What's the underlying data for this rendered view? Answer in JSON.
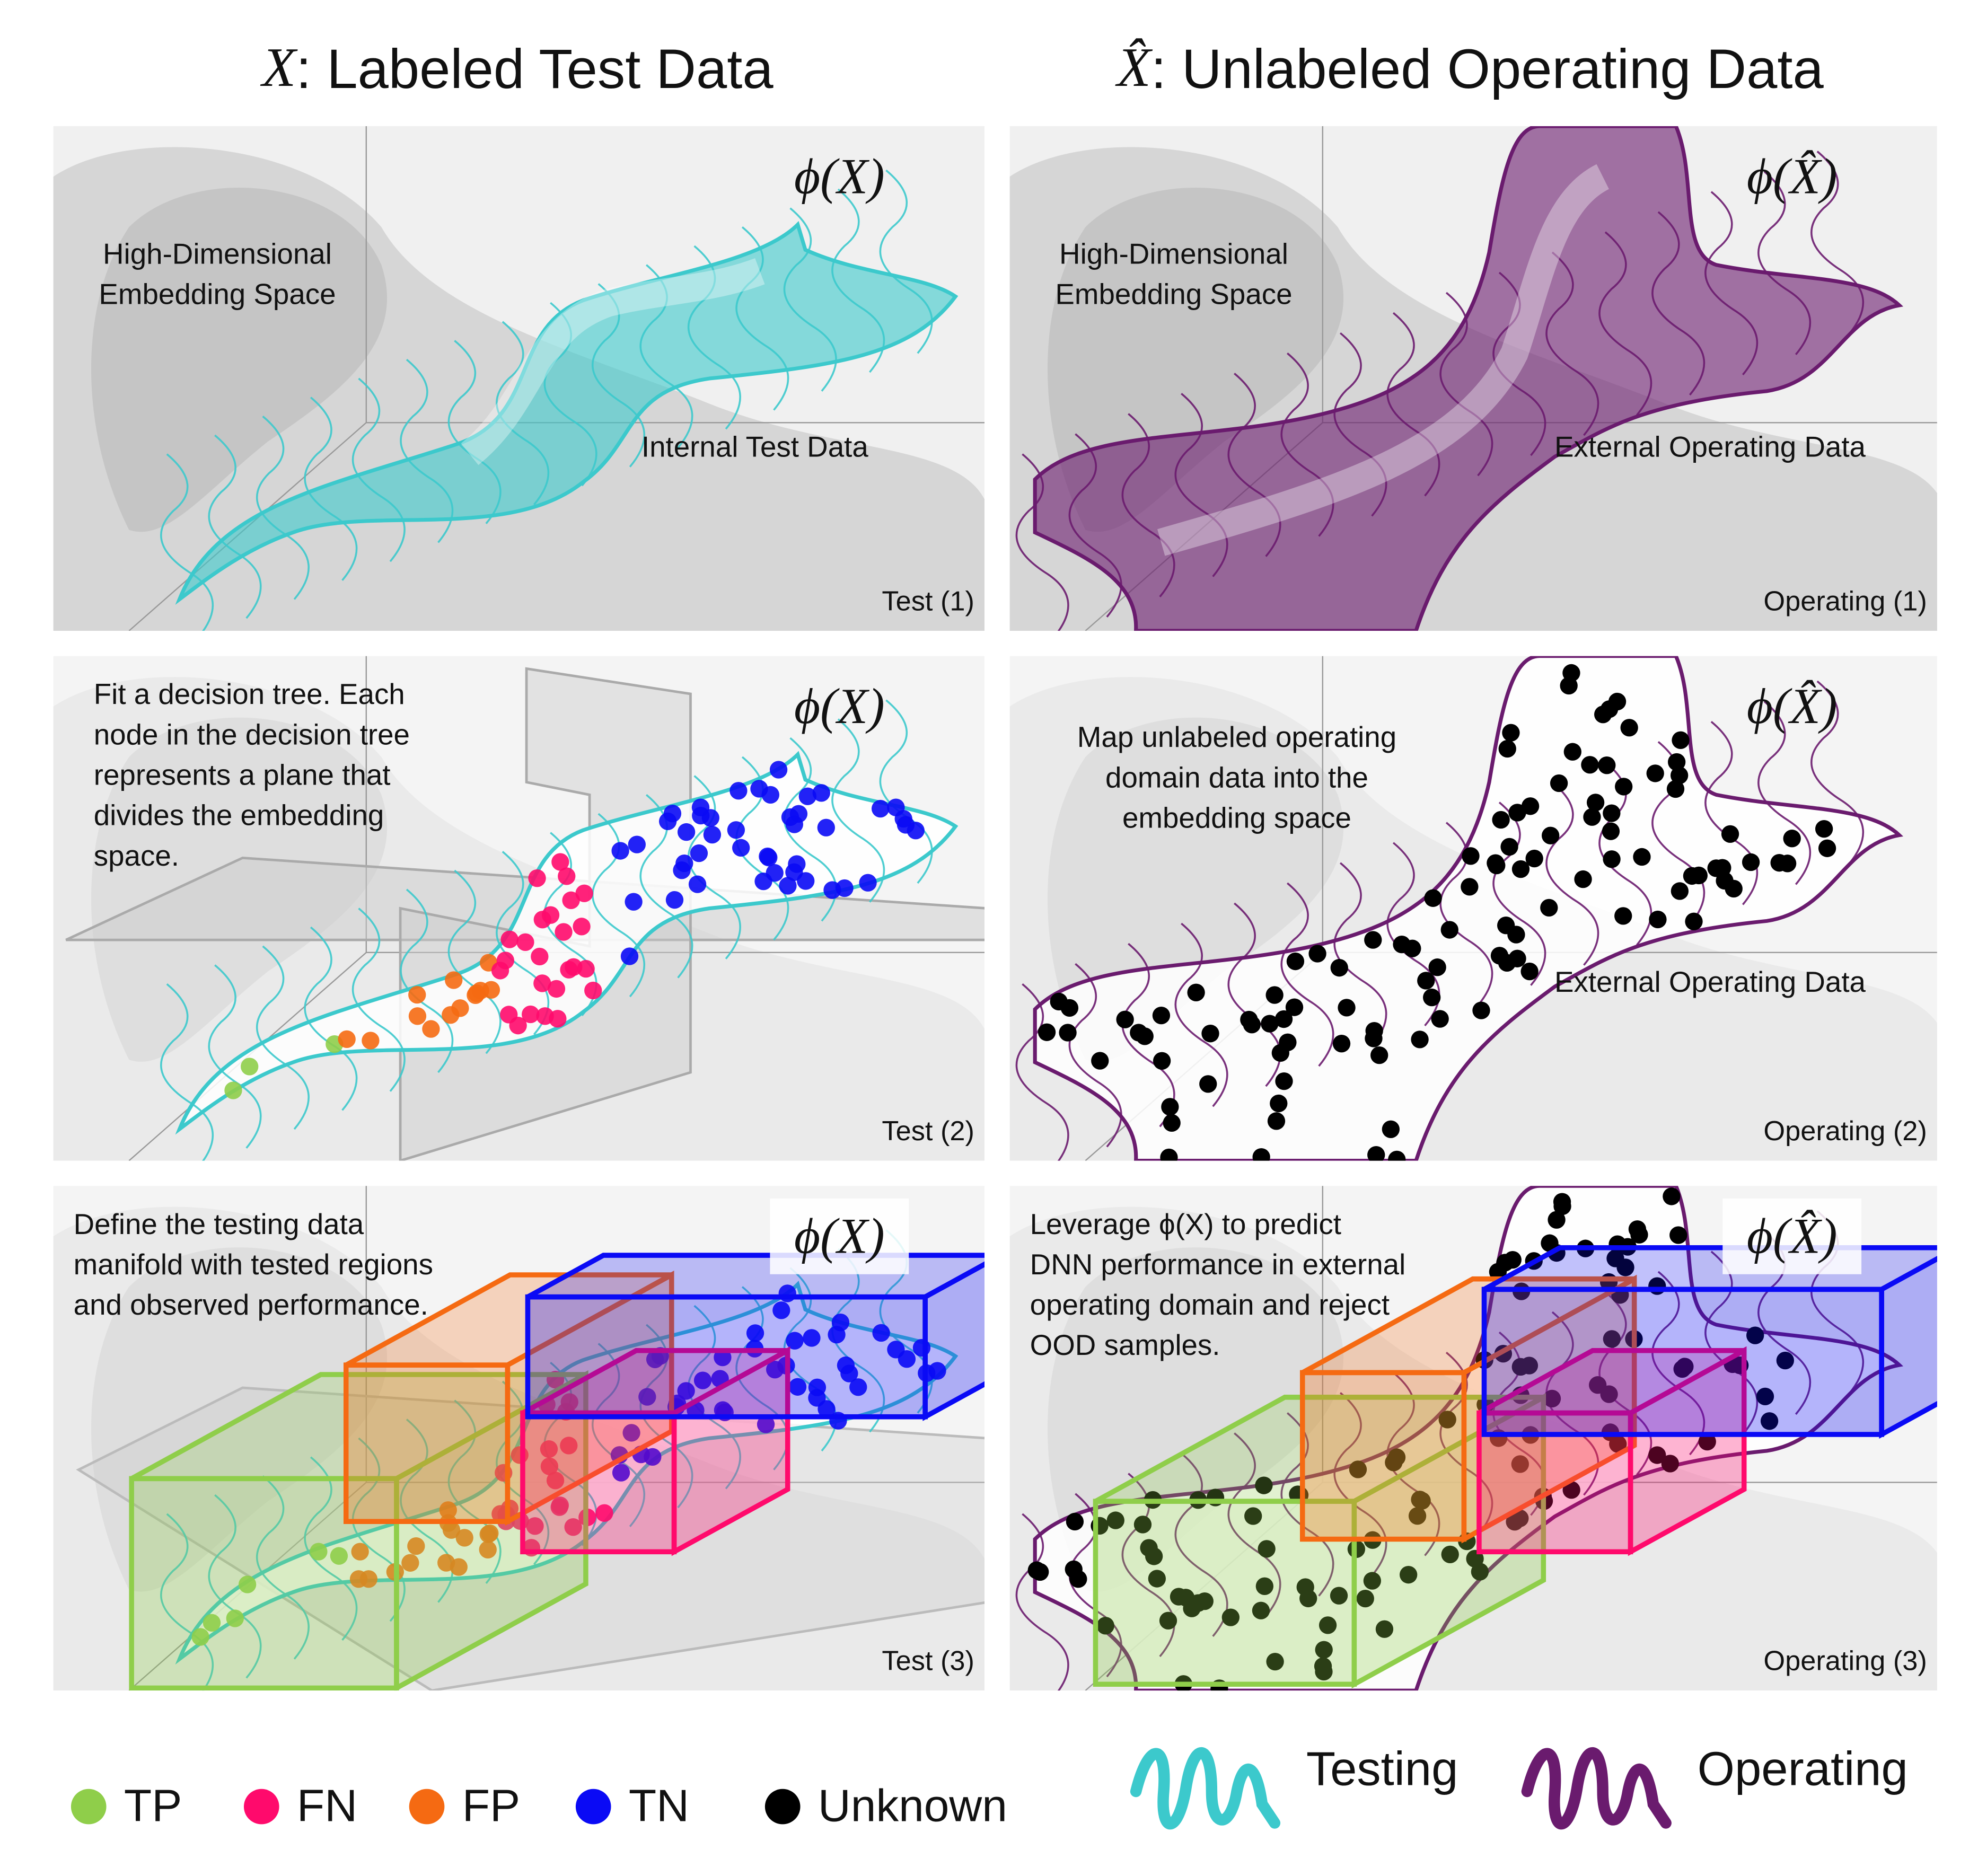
{
  "titles": [
    {
      "symbol": "X",
      "text": ": Labeled Test Data"
    },
    {
      "symbol": "X̂",
      "text": ": Unlabeled Operating Data"
    }
  ],
  "panels": [
    {
      "tag": "Test (1)",
      "phi": "ϕ(X)",
      "note": [
        "High-Dimensional",
        "Embedding Space"
      ],
      "region": "Internal Test Data"
    },
    {
      "tag": "Operating (1)",
      "phi": "ϕ(X̂)",
      "note": [
        "High-Dimensional",
        "Embedding Space"
      ],
      "region": "External Operating Data"
    },
    {
      "tag": "Test (2)",
      "phi": "ϕ(X)",
      "note": [
        "Fit a decision tree. Each",
        "node in the decision tree",
        "represents a plane that",
        "divides the embedding",
        "space."
      ]
    },
    {
      "tag": "Operating (2)",
      "phi": "ϕ(X̂)",
      "note": [
        "Map unlabeled operating",
        "domain data into the",
        "embedding space"
      ],
      "region": "External Operating Data"
    },
    {
      "tag": "Test (3)",
      "phi": "ϕ(X)",
      "note": [
        "Define the testing data",
        "manifold with tested regions",
        "and observed performance."
      ]
    },
    {
      "tag": "Operating (3)",
      "phi": "ϕ(X̂)",
      "note": [
        "Leverage ϕ(X) to predict",
        "DNN performance in external",
        "operating domain and reject",
        "OOD samples."
      ]
    }
  ],
  "legend": {
    "classes": [
      {
        "name": "TP",
        "color": "#8fce4a"
      },
      {
        "name": "FN",
        "color": "#ff0a6c"
      },
      {
        "name": "FP",
        "color": "#f56a12"
      },
      {
        "name": "TN",
        "color": "#0a0af5"
      },
      {
        "name": "Unknown",
        "color": "#000000"
      }
    ],
    "curves": [
      {
        "name": "Testing",
        "color": "#3cc9cc"
      },
      {
        "name": "Operating",
        "color": "#6a1b6e"
      }
    ]
  }
}
